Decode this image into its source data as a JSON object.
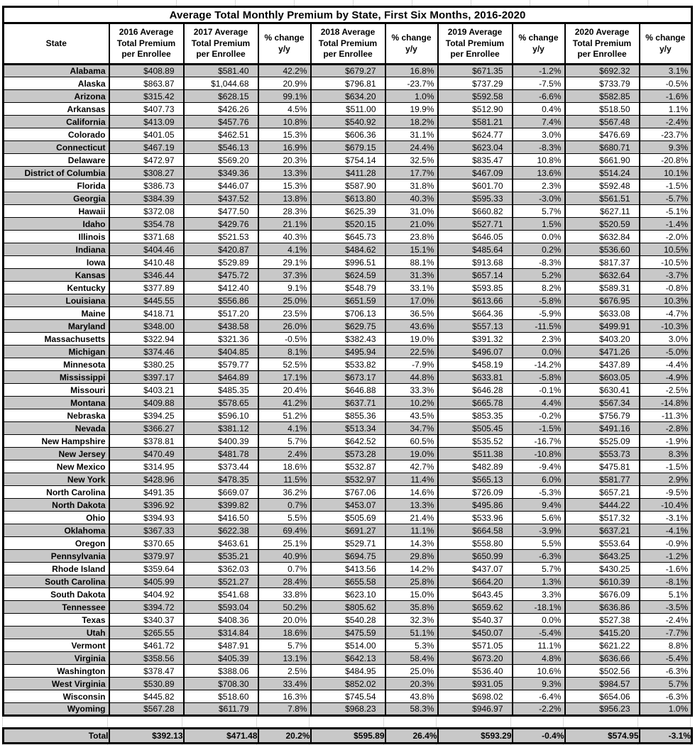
{
  "chart_data": {
    "type": "table",
    "title": "Average Total Monthly Premium by State, First Six Months, 2016-2020",
    "columns": [
      "State",
      "2016 Average\nTotal Premium\nper Enrollee",
      "2017 Average\nTotal Premium\nper Enrollee",
      "% change\ny/y",
      "2018 Average\nTotal Premium\nper Enrollee",
      "% change\ny/y",
      "2019 Average\nTotal Premium\nper Enrollee",
      "% change\ny/y",
      "2020 Average\nTotal Premium\nper Enrollee",
      "% change\ny/y"
    ],
    "rows": [
      [
        "Alabama",
        "$408.89",
        "$581.40",
        "42.2%",
        "$679.27",
        "16.8%",
        "$671.35",
        "-1.2%",
        "$692.32",
        "3.1%"
      ],
      [
        "Alaska",
        "$863.87",
        "$1,044.68",
        "20.9%",
        "$796.81",
        "-23.7%",
        "$737.29",
        "-7.5%",
        "$733.79",
        "-0.5%"
      ],
      [
        "Arizona",
        "$315.42",
        "$628.15",
        "99.1%",
        "$634.20",
        "1.0%",
        "$592.58",
        "-6.6%",
        "$582.85",
        "-1.6%"
      ],
      [
        "Arkansas",
        "$407.73",
        "$426.26",
        "4.5%",
        "$511.00",
        "19.9%",
        "$512.90",
        "0.4%",
        "$518.50",
        "1.1%"
      ],
      [
        "California",
        "$413.09",
        "$457.76",
        "10.8%",
        "$540.92",
        "18.2%",
        "$581.21",
        "7.4%",
        "$567.48",
        "-2.4%"
      ],
      [
        "Colorado",
        "$401.05",
        "$462.51",
        "15.3%",
        "$606.36",
        "31.1%",
        "$624.77",
        "3.0%",
        "$476.69",
        "-23.7%"
      ],
      [
        "Connecticut",
        "$467.19",
        "$546.13",
        "16.9%",
        "$679.15",
        "24.4%",
        "$623.04",
        "-8.3%",
        "$680.71",
        "9.3%"
      ],
      [
        "Delaware",
        "$472.97",
        "$569.20",
        "20.3%",
        "$754.14",
        "32.5%",
        "$835.47",
        "10.8%",
        "$661.90",
        "-20.8%"
      ],
      [
        "District of Columbia",
        "$308.27",
        "$349.36",
        "13.3%",
        "$411.28",
        "17.7%",
        "$467.09",
        "13.6%",
        "$514.24",
        "10.1%"
      ],
      [
        "Florida",
        "$386.73",
        "$446.07",
        "15.3%",
        "$587.90",
        "31.8%",
        "$601.70",
        "2.3%",
        "$592.48",
        "-1.5%"
      ],
      [
        "Georgia",
        "$384.39",
        "$437.52",
        "13.8%",
        "$613.80",
        "40.3%",
        "$595.33",
        "-3.0%",
        "$561.51",
        "-5.7%"
      ],
      [
        "Hawaii",
        "$372.08",
        "$477.50",
        "28.3%",
        "$625.39",
        "31.0%",
        "$660.82",
        "5.7%",
        "$627.11",
        "-5.1%"
      ],
      [
        "Idaho",
        "$354.78",
        "$429.76",
        "21.1%",
        "$520.15",
        "21.0%",
        "$527.71",
        "1.5%",
        "$520.59",
        "-1.4%"
      ],
      [
        "Illinois",
        "$371.68",
        "$521.53",
        "40.3%",
        "$645.73",
        "23.8%",
        "$646.05",
        "0.0%",
        "$632.84",
        "-2.0%"
      ],
      [
        "Indiana",
        "$404.46",
        "$420.87",
        "4.1%",
        "$484.62",
        "15.1%",
        "$485.64",
        "0.2%",
        "$536.60",
        "10.5%"
      ],
      [
        "Iowa",
        "$410.48",
        "$529.89",
        "29.1%",
        "$996.51",
        "88.1%",
        "$913.68",
        "-8.3%",
        "$817.37",
        "-10.5%"
      ],
      [
        "Kansas",
        "$346.44",
        "$475.72",
        "37.3%",
        "$624.59",
        "31.3%",
        "$657.14",
        "5.2%",
        "$632.64",
        "-3.7%"
      ],
      [
        "Kentucky",
        "$377.89",
        "$412.40",
        "9.1%",
        "$548.79",
        "33.1%",
        "$593.85",
        "8.2%",
        "$589.31",
        "-0.8%"
      ],
      [
        "Louisiana",
        "$445.55",
        "$556.86",
        "25.0%",
        "$651.59",
        "17.0%",
        "$613.66",
        "-5.8%",
        "$676.95",
        "10.3%"
      ],
      [
        "Maine",
        "$418.71",
        "$517.20",
        "23.5%",
        "$706.13",
        "36.5%",
        "$664.36",
        "-5.9%",
        "$633.08",
        "-4.7%"
      ],
      [
        "Maryland",
        "$348.00",
        "$438.58",
        "26.0%",
        "$629.75",
        "43.6%",
        "$557.13",
        "-11.5%",
        "$499.91",
        "-10.3%"
      ],
      [
        "Massachusetts",
        "$322.94",
        "$321.36",
        "-0.5%",
        "$382.43",
        "19.0%",
        "$391.32",
        "2.3%",
        "$403.20",
        "3.0%"
      ],
      [
        "Michigan",
        "$374.46",
        "$404.85",
        "8.1%",
        "$495.94",
        "22.5%",
        "$496.07",
        "0.0%",
        "$471.26",
        "-5.0%"
      ],
      [
        "Minnesota",
        "$380.25",
        "$579.77",
        "52.5%",
        "$533.82",
        "-7.9%",
        "$458.19",
        "-14.2%",
        "$437.89",
        "-4.4%"
      ],
      [
        "Mississippi",
        "$397.17",
        "$464.89",
        "17.1%",
        "$673.17",
        "44.8%",
        "$633.81",
        "-5.8%",
        "$603.05",
        "-4.9%"
      ],
      [
        "Missouri",
        "$403.21",
        "$485.35",
        "20.4%",
        "$646.88",
        "33.3%",
        "$646.28",
        "-0.1%",
        "$630.41",
        "-2.5%"
      ],
      [
        "Montana",
        "$409.88",
        "$578.65",
        "41.2%",
        "$637.71",
        "10.2%",
        "$665.78",
        "4.4%",
        "$567.34",
        "-14.8%"
      ],
      [
        "Nebraska",
        "$394.25",
        "$596.10",
        "51.2%",
        "$855.36",
        "43.5%",
        "$853.35",
        "-0.2%",
        "$756.79",
        "-11.3%"
      ],
      [
        "Nevada",
        "$366.27",
        "$381.12",
        "4.1%",
        "$513.34",
        "34.7%",
        "$505.45",
        "-1.5%",
        "$491.16",
        "-2.8%"
      ],
      [
        "New Hampshire",
        "$378.81",
        "$400.39",
        "5.7%",
        "$642.52",
        "60.5%",
        "$535.52",
        "-16.7%",
        "$525.09",
        "-1.9%"
      ],
      [
        "New Jersey",
        "$470.49",
        "$481.78",
        "2.4%",
        "$573.28",
        "19.0%",
        "$511.38",
        "-10.8%",
        "$553.73",
        "8.3%"
      ],
      [
        "New Mexico",
        "$314.95",
        "$373.44",
        "18.6%",
        "$532.87",
        "42.7%",
        "$482.89",
        "-9.4%",
        "$475.81",
        "-1.5%"
      ],
      [
        "New York",
        "$428.96",
        "$478.35",
        "11.5%",
        "$532.97",
        "11.4%",
        "$565.13",
        "6.0%",
        "$581.77",
        "2.9%"
      ],
      [
        "North Carolina",
        "$491.35",
        "$669.07",
        "36.2%",
        "$767.06",
        "14.6%",
        "$726.09",
        "-5.3%",
        "$657.21",
        "-9.5%"
      ],
      [
        "North Dakota",
        "$396.92",
        "$399.82",
        "0.7%",
        "$453.07",
        "13.3%",
        "$495.86",
        "9.4%",
        "$444.22",
        "-10.4%"
      ],
      [
        "Ohio",
        "$394.93",
        "$416.50",
        "5.5%",
        "$505.69",
        "21.4%",
        "$533.96",
        "5.6%",
        "$517.32",
        "-3.1%"
      ],
      [
        "Oklahoma",
        "$367.33",
        "$622.38",
        "69.4%",
        "$691.27",
        "11.1%",
        "$664.58",
        "-3.9%",
        "$637.21",
        "-4.1%"
      ],
      [
        "Oregon",
        "$370.65",
        "$463.61",
        "25.1%",
        "$529.71",
        "14.3%",
        "$558.80",
        "5.5%",
        "$553.64",
        "-0.9%"
      ],
      [
        "Pennsylvania",
        "$379.97",
        "$535.21",
        "40.9%",
        "$694.75",
        "29.8%",
        "$650.99",
        "-6.3%",
        "$643.25",
        "-1.2%"
      ],
      [
        "Rhode Island",
        "$359.64",
        "$362.03",
        "0.7%",
        "$413.56",
        "14.2%",
        "$437.07",
        "5.7%",
        "$430.25",
        "-1.6%"
      ],
      [
        "South Carolina",
        "$405.99",
        "$521.27",
        "28.4%",
        "$655.58",
        "25.8%",
        "$664.20",
        "1.3%",
        "$610.39",
        "-8.1%"
      ],
      [
        "South Dakota",
        "$404.92",
        "$541.68",
        "33.8%",
        "$623.10",
        "15.0%",
        "$643.45",
        "3.3%",
        "$676.09",
        "5.1%"
      ],
      [
        "Tennessee",
        "$394.72",
        "$593.04",
        "50.2%",
        "$805.62",
        "35.8%",
        "$659.62",
        "-18.1%",
        "$636.86",
        "-3.5%"
      ],
      [
        "Texas",
        "$340.37",
        "$408.36",
        "20.0%",
        "$540.28",
        "32.3%",
        "$540.37",
        "0.0%",
        "$527.38",
        "-2.4%"
      ],
      [
        "Utah",
        "$265.55",
        "$314.84",
        "18.6%",
        "$475.59",
        "51.1%",
        "$450.07",
        "-5.4%",
        "$415.20",
        "-7.7%"
      ],
      [
        "Vermont",
        "$461.72",
        "$487.91",
        "5.7%",
        "$514.00",
        "5.3%",
        "$571.05",
        "11.1%",
        "$621.22",
        "8.8%"
      ],
      [
        "Virginia",
        "$358.56",
        "$405.39",
        "13.1%",
        "$642.13",
        "58.4%",
        "$673.20",
        "4.8%",
        "$636.66",
        "-5.4%"
      ],
      [
        "Washington",
        "$378.47",
        "$388.06",
        "2.5%",
        "$484.95",
        "25.0%",
        "$536.40",
        "10.6%",
        "$502.56",
        "-6.3%"
      ],
      [
        "West Virginia",
        "$530.89",
        "$708.30",
        "33.4%",
        "$852.02",
        "20.3%",
        "$931.05",
        "9.3%",
        "$984.57",
        "5.7%"
      ],
      [
        "Wisconsin",
        "$445.82",
        "$518.60",
        "16.3%",
        "$745.54",
        "43.8%",
        "$698.02",
        "-6.4%",
        "$654.06",
        "-6.3%"
      ],
      [
        "Wyoming",
        "$567.28",
        "$611.79",
        "7.8%",
        "$968.23",
        "58.3%",
        "$946.97",
        "-2.2%",
        "$956.23",
        "1.0%"
      ]
    ],
    "total": {
      "label": "Total",
      "values": [
        "$392.13",
        "$471.48",
        "20.2%",
        "$595.89",
        "26.4%",
        "$593.29",
        "-0.4%",
        "$574.95",
        "-3.1%"
      ]
    },
    "layout_hints": {
      "stripe_color": "#c8c8c8",
      "border_color": "#000000",
      "faint_grid_color": "#d9d9d9",
      "striped_rows": "odd rows shaded starting with Alabama"
    }
  }
}
